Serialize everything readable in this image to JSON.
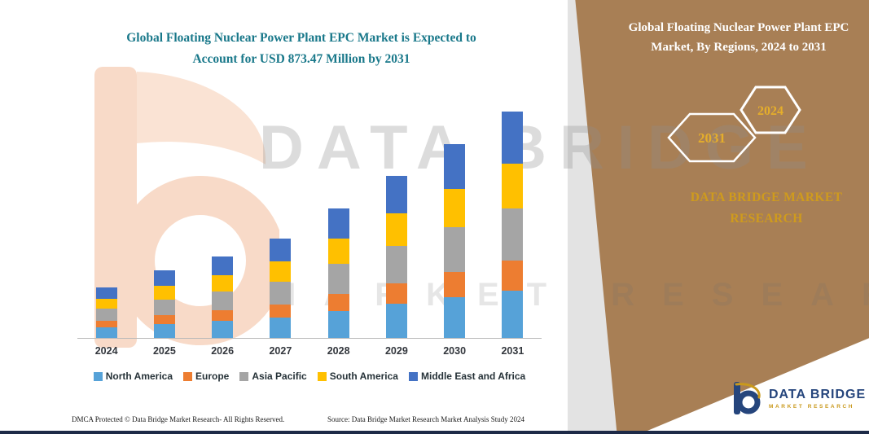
{
  "header": {
    "title": "Global Floating Nuclear Power Plant EPC Market is Expected to Account for USD 873.47 Million by 2031"
  },
  "panel": {
    "title": "Global Floating Nuclear Power Plant EPC Market, By Regions, 2024 to 2031",
    "hexagons": [
      {
        "label": "2031"
      },
      {
        "label": "2024"
      }
    ],
    "brand_text": "DATA BRIDGE MARKET RESEARCH",
    "color": "#a87f55",
    "hex_label_color": "#e5ae2b"
  },
  "watermark": {
    "line1": "DATA BRIDGE",
    "line2": "MARKET RESEARCH"
  },
  "logo": {
    "title": "DATA BRIDGE",
    "subtitle": "MARKET RESEARCH"
  },
  "footer": {
    "dmca": "DMCA Protected © Data Bridge Market Research-  All Rights Reserved.",
    "source": "Source: Data Bridge Market Research  Market Analysis Study 2024"
  },
  "chart_data": {
    "type": "bar",
    "stacked": true,
    "title": "Global Floating Nuclear Power Plant EPC Market is Expected to Account for USD 873.47 Million by 2031",
    "unit": "USD Million",
    "categories": [
      "2024",
      "2025",
      "2026",
      "2027",
      "2028",
      "2029",
      "2030",
      "2031"
    ],
    "series": [
      {
        "name": "North America",
        "color": "#56a2d8",
        "values": [
          41,
          55,
          66,
          80,
          105,
          131,
          157,
          183.47
        ]
      },
      {
        "name": "Europe",
        "color": "#ed7d31",
        "values": [
          26,
          34,
          41,
          50,
          65,
          81,
          97,
          114
        ]
      },
      {
        "name": "Asia Pacific",
        "color": "#a5a5a5",
        "values": [
          45,
          60,
          72,
          88,
          115,
          144,
          172,
          201
        ]
      },
      {
        "name": "South America",
        "color": "#ffc000",
        "values": [
          39,
          52,
          63,
          76,
          100,
          125,
          150,
          175
        ]
      },
      {
        "name": "Middle East and Africa",
        "color": "#4472c4",
        "values": [
          45,
          60,
          72,
          88,
          115,
          144,
          172,
          200
        ]
      }
    ],
    "totals_estimated": [
      196,
      261,
      314,
      382,
      500,
      625,
      748,
      873.47
    ],
    "xlabel": "",
    "ylabel": "",
    "ylim": [
      0,
      900
    ],
    "grid": false,
    "legend_position": "bottom"
  }
}
